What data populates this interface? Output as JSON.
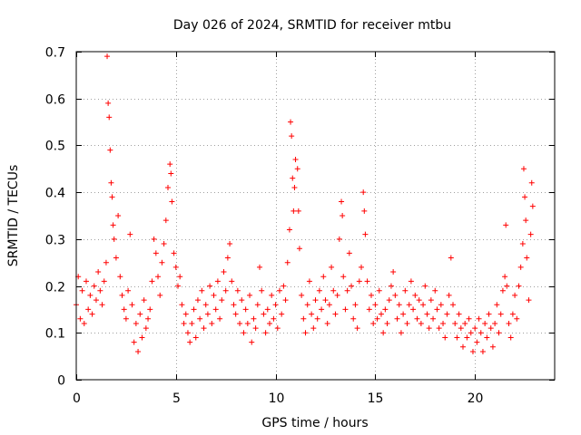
{
  "chart_data": {
    "type": "scatter",
    "title": "Day 026 of 2024, SRMTID for receiver mtbu",
    "xlabel": "GPS time / hours",
    "ylabel": "SRMTID / TECUs",
    "xlim": [
      0,
      24
    ],
    "ylim": [
      0,
      0.7
    ],
    "x_ticks": [
      0,
      5,
      10,
      15,
      20
    ],
    "x_tick_labels": [
      "0",
      "5",
      "10",
      "15",
      "20"
    ],
    "y_ticks": [
      0,
      0.1,
      0.2,
      0.3,
      0.4,
      0.5,
      0.6,
      0.7
    ],
    "y_tick_labels": [
      "0",
      "0.1",
      "0.2",
      "0.3",
      "0.4",
      "0.5",
      "0.6",
      "0.7"
    ],
    "grid": true,
    "marker": "plus",
    "color": "#ff0000",
    "series": [
      {
        "name": "SRMTID",
        "points": [
          [
            0.0,
            0.16
          ],
          [
            0.1,
            0.22
          ],
          [
            0.2,
            0.13
          ],
          [
            0.3,
            0.19
          ],
          [
            0.4,
            0.12
          ],
          [
            0.5,
            0.21
          ],
          [
            0.6,
            0.15
          ],
          [
            0.7,
            0.18
          ],
          [
            0.8,
            0.14
          ],
          [
            0.9,
            0.2
          ],
          [
            1.0,
            0.17
          ],
          [
            1.1,
            0.23
          ],
          [
            1.2,
            0.19
          ],
          [
            1.3,
            0.16
          ],
          [
            1.4,
            0.21
          ],
          [
            1.5,
            0.25
          ],
          [
            1.55,
            0.69
          ],
          [
            1.6,
            0.59
          ],
          [
            1.65,
            0.56
          ],
          [
            1.7,
            0.49
          ],
          [
            1.75,
            0.42
          ],
          [
            1.8,
            0.39
          ],
          [
            1.85,
            0.33
          ],
          [
            1.9,
            0.3
          ],
          [
            2.0,
            0.26
          ],
          [
            2.1,
            0.35
          ],
          [
            2.2,
            0.22
          ],
          [
            2.3,
            0.18
          ],
          [
            2.4,
            0.15
          ],
          [
            2.5,
            0.13
          ],
          [
            2.6,
            0.19
          ],
          [
            2.7,
            0.31
          ],
          [
            2.8,
            0.16
          ],
          [
            2.9,
            0.08
          ],
          [
            3.0,
            0.12
          ],
          [
            3.1,
            0.06
          ],
          [
            3.2,
            0.14
          ],
          [
            3.3,
            0.09
          ],
          [
            3.4,
            0.17
          ],
          [
            3.5,
            0.11
          ],
          [
            3.6,
            0.13
          ],
          [
            3.7,
            0.15
          ],
          [
            3.8,
            0.21
          ],
          [
            3.9,
            0.3
          ],
          [
            4.0,
            0.27
          ],
          [
            4.1,
            0.22
          ],
          [
            4.2,
            0.18
          ],
          [
            4.3,
            0.25
          ],
          [
            4.4,
            0.29
          ],
          [
            4.5,
            0.34
          ],
          [
            4.6,
            0.41
          ],
          [
            4.7,
            0.46
          ],
          [
            4.75,
            0.44
          ],
          [
            4.8,
            0.38
          ],
          [
            4.9,
            0.27
          ],
          [
            5.0,
            0.24
          ],
          [
            5.1,
            0.2
          ],
          [
            5.2,
            0.22
          ],
          [
            5.3,
            0.16
          ],
          [
            5.4,
            0.12
          ],
          [
            5.5,
            0.14
          ],
          [
            5.6,
            0.1
          ],
          [
            5.7,
            0.08
          ],
          [
            5.8,
            0.12
          ],
          [
            5.9,
            0.15
          ],
          [
            6.0,
            0.09
          ],
          [
            6.1,
            0.17
          ],
          [
            6.2,
            0.13
          ],
          [
            6.3,
            0.19
          ],
          [
            6.4,
            0.11
          ],
          [
            6.5,
            0.16
          ],
          [
            6.6,
            0.14
          ],
          [
            6.7,
            0.2
          ],
          [
            6.8,
            0.12
          ],
          [
            6.9,
            0.18
          ],
          [
            7.0,
            0.15
          ],
          [
            7.1,
            0.21
          ],
          [
            7.2,
            0.13
          ],
          [
            7.3,
            0.17
          ],
          [
            7.4,
            0.23
          ],
          [
            7.5,
            0.19
          ],
          [
            7.6,
            0.26
          ],
          [
            7.7,
            0.29
          ],
          [
            7.8,
            0.21
          ],
          [
            7.9,
            0.16
          ],
          [
            8.0,
            0.14
          ],
          [
            8.1,
            0.19
          ],
          [
            8.2,
            0.12
          ],
          [
            8.3,
            0.17
          ],
          [
            8.4,
            0.1
          ],
          [
            8.5,
            0.15
          ],
          [
            8.6,
            0.12
          ],
          [
            8.7,
            0.18
          ],
          [
            8.8,
            0.08
          ],
          [
            8.9,
            0.13
          ],
          [
            9.0,
            0.11
          ],
          [
            9.1,
            0.16
          ],
          [
            9.2,
            0.24
          ],
          [
            9.3,
            0.19
          ],
          [
            9.4,
            0.14
          ],
          [
            9.5,
            0.1
          ],
          [
            9.6,
            0.15
          ],
          [
            9.7,
            0.12
          ],
          [
            9.8,
            0.18
          ],
          [
            9.9,
            0.13
          ],
          [
            10.0,
            0.16
          ],
          [
            10.1,
            0.11
          ],
          [
            10.2,
            0.19
          ],
          [
            10.3,
            0.14
          ],
          [
            10.4,
            0.2
          ],
          [
            10.5,
            0.17
          ],
          [
            10.6,
            0.25
          ],
          [
            10.7,
            0.32
          ],
          [
            10.75,
            0.55
          ],
          [
            10.8,
            0.52
          ],
          [
            10.85,
            0.43
          ],
          [
            10.9,
            0.36
          ],
          [
            10.95,
            0.41
          ],
          [
            11.0,
            0.47
          ],
          [
            11.1,
            0.45
          ],
          [
            11.15,
            0.36
          ],
          [
            11.2,
            0.28
          ],
          [
            11.3,
            0.18
          ],
          [
            11.4,
            0.13
          ],
          [
            11.5,
            0.1
          ],
          [
            11.6,
            0.16
          ],
          [
            11.7,
            0.21
          ],
          [
            11.8,
            0.14
          ],
          [
            11.9,
            0.11
          ],
          [
            12.0,
            0.17
          ],
          [
            12.1,
            0.13
          ],
          [
            12.2,
            0.19
          ],
          [
            12.3,
            0.15
          ],
          [
            12.4,
            0.22
          ],
          [
            12.5,
            0.17
          ],
          [
            12.6,
            0.12
          ],
          [
            12.7,
            0.16
          ],
          [
            12.8,
            0.24
          ],
          [
            12.9,
            0.19
          ],
          [
            13.0,
            0.14
          ],
          [
            13.1,
            0.18
          ],
          [
            13.2,
            0.3
          ],
          [
            13.3,
            0.38
          ],
          [
            13.35,
            0.35
          ],
          [
            13.4,
            0.22
          ],
          [
            13.5,
            0.15
          ],
          [
            13.6,
            0.19
          ],
          [
            13.7,
            0.27
          ],
          [
            13.8,
            0.2
          ],
          [
            13.9,
            0.13
          ],
          [
            14.0,
            0.16
          ],
          [
            14.1,
            0.11
          ],
          [
            14.2,
            0.21
          ],
          [
            14.3,
            0.24
          ],
          [
            14.4,
            0.4
          ],
          [
            14.45,
            0.36
          ],
          [
            14.5,
            0.31
          ],
          [
            14.6,
            0.21
          ],
          [
            14.7,
            0.15
          ],
          [
            14.8,
            0.18
          ],
          [
            14.9,
            0.12
          ],
          [
            15.0,
            0.16
          ],
          [
            15.1,
            0.13
          ],
          [
            15.2,
            0.19
          ],
          [
            15.3,
            0.14
          ],
          [
            15.4,
            0.1
          ],
          [
            15.5,
            0.15
          ],
          [
            15.6,
            0.12
          ],
          [
            15.7,
            0.17
          ],
          [
            15.8,
            0.2
          ],
          [
            15.9,
            0.23
          ],
          [
            16.0,
            0.18
          ],
          [
            16.1,
            0.13
          ],
          [
            16.2,
            0.16
          ],
          [
            16.3,
            0.1
          ],
          [
            16.4,
            0.14
          ],
          [
            16.5,
            0.19
          ],
          [
            16.6,
            0.12
          ],
          [
            16.7,
            0.16
          ],
          [
            16.8,
            0.21
          ],
          [
            16.9,
            0.15
          ],
          [
            17.0,
            0.18
          ],
          [
            17.1,
            0.13
          ],
          [
            17.2,
            0.17
          ],
          [
            17.3,
            0.12
          ],
          [
            17.4,
            0.16
          ],
          [
            17.5,
            0.2
          ],
          [
            17.6,
            0.14
          ],
          [
            17.7,
            0.11
          ],
          [
            17.8,
            0.17
          ],
          [
            17.9,
            0.13
          ],
          [
            18.0,
            0.19
          ],
          [
            18.1,
            0.15
          ],
          [
            18.2,
            0.11
          ],
          [
            18.3,
            0.16
          ],
          [
            18.4,
            0.12
          ],
          [
            18.5,
            0.09
          ],
          [
            18.6,
            0.14
          ],
          [
            18.7,
            0.18
          ],
          [
            18.8,
            0.26
          ],
          [
            18.9,
            0.16
          ],
          [
            19.0,
            0.12
          ],
          [
            19.1,
            0.09
          ],
          [
            19.2,
            0.14
          ],
          [
            19.3,
            0.11
          ],
          [
            19.4,
            0.07
          ],
          [
            19.5,
            0.12
          ],
          [
            19.6,
            0.09
          ],
          [
            19.7,
            0.13
          ],
          [
            19.8,
            0.1
          ],
          [
            19.9,
            0.06
          ],
          [
            20.0,
            0.11
          ],
          [
            20.1,
            0.08
          ],
          [
            20.2,
            0.13
          ],
          [
            20.3,
            0.1
          ],
          [
            20.4,
            0.06
          ],
          [
            20.5,
            0.12
          ],
          [
            20.6,
            0.09
          ],
          [
            20.7,
            0.14
          ],
          [
            20.8,
            0.11
          ],
          [
            20.9,
            0.07
          ],
          [
            21.0,
            0.12
          ],
          [
            21.1,
            0.16
          ],
          [
            21.2,
            0.1
          ],
          [
            21.3,
            0.14
          ],
          [
            21.4,
            0.19
          ],
          [
            21.5,
            0.22
          ],
          [
            21.55,
            0.33
          ],
          [
            21.6,
            0.2
          ],
          [
            21.7,
            0.12
          ],
          [
            21.8,
            0.09
          ],
          [
            21.9,
            0.14
          ],
          [
            22.0,
            0.18
          ],
          [
            22.1,
            0.13
          ],
          [
            22.2,
            0.2
          ],
          [
            22.3,
            0.24
          ],
          [
            22.4,
            0.29
          ],
          [
            22.45,
            0.45
          ],
          [
            22.5,
            0.39
          ],
          [
            22.55,
            0.34
          ],
          [
            22.6,
            0.26
          ],
          [
            22.7,
            0.17
          ],
          [
            22.8,
            0.31
          ],
          [
            22.85,
            0.42
          ],
          [
            22.9,
            0.37
          ]
        ]
      }
    ]
  }
}
